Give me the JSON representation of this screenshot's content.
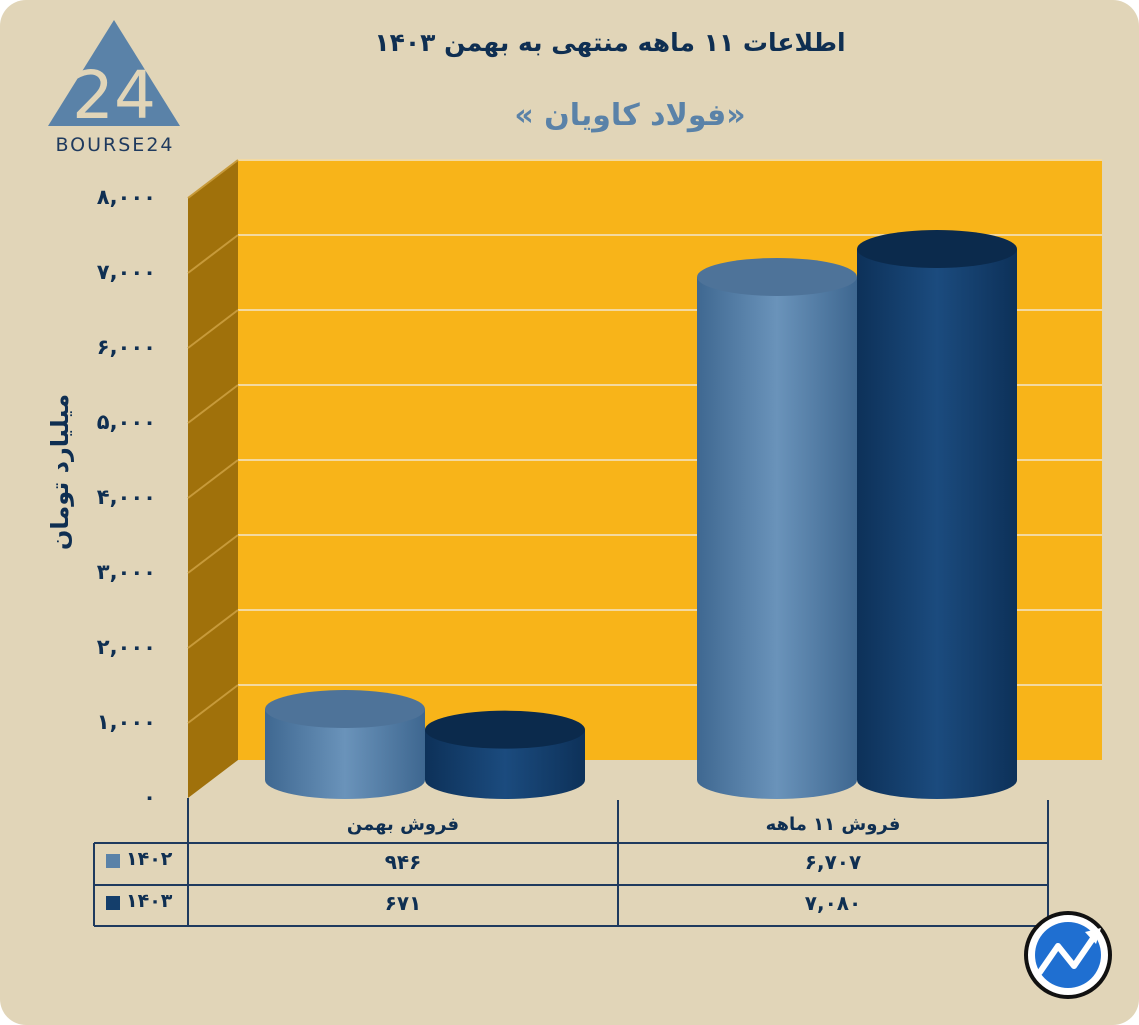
{
  "brand": {
    "logo_mark": "24",
    "logo_text": "BOURSE24",
    "badge_icon": "trend-arrow-icon"
  },
  "colors": {
    "background": "#e1d5b8",
    "plot": "#f8b419",
    "side_wall": "#a0710b",
    "series_1402": "#5a82a8",
    "series_1403": "#143e6b",
    "text": "#0f2f52"
  },
  "chart_data": {
    "type": "bar",
    "title": "اطلاعات ۱۱ ماهه منتهی به بهمن ۱۴۰۳",
    "subtitle": "«فولاد کاویان »",
    "ylabel": "میلیارد تومان",
    "xlabel": "",
    "ylim": [
      0,
      8000
    ],
    "ytick_values": [
      0,
      1000,
      2000,
      3000,
      4000,
      5000,
      6000,
      7000,
      8000
    ],
    "ytick_labels": [
      "۰",
      "۱,۰۰۰",
      "۲,۰۰۰",
      "۳,۰۰۰",
      "۴,۰۰۰",
      "۵,۰۰۰",
      "۶,۰۰۰",
      "۷,۰۰۰",
      "۸,۰۰۰"
    ],
    "categories": [
      "فروش ۱۱ ماهه",
      "فروش بهمن"
    ],
    "series": [
      {
        "name": "۱۴۰۲",
        "values": [
          6707,
          946
        ],
        "labels": [
          "۶,۷۰۷",
          "۹۴۶"
        ]
      },
      {
        "name": "۱۴۰۳",
        "values": [
          7080,
          671
        ],
        "labels": [
          "۷,۰۸۰",
          "۶۷۱"
        ]
      }
    ],
    "grid": true,
    "legend": "data-table-left"
  }
}
